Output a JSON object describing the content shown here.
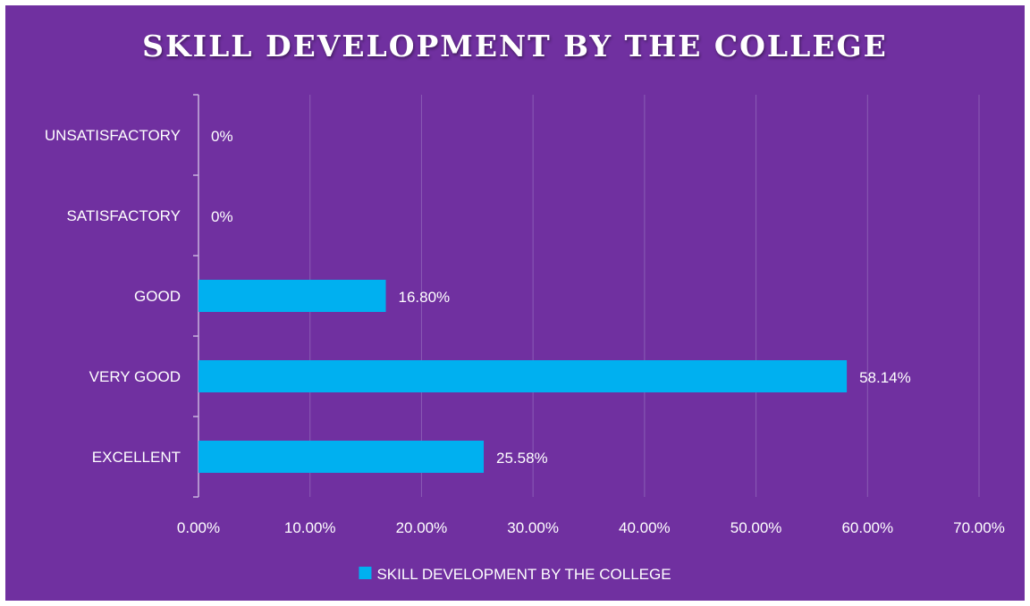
{
  "chart_data": {
    "type": "bar",
    "orientation": "horizontal",
    "title": "SKILL DEVELOPMENT BY THE COLLEGE",
    "categories": [
      "UNSATISFACTORY",
      "SATISFACTORY",
      "GOOD",
      "VERY GOOD",
      "EXCELLENT"
    ],
    "series": [
      {
        "name": "SKILL DEVELOPMENT BY THE COLLEGE",
        "values": [
          0,
          0,
          16.8,
          58.14,
          25.58
        ],
        "data_labels": [
          "0%",
          "0%",
          "16.80%",
          "58.14%",
          "25.58%"
        ]
      }
    ],
    "xlim": [
      0,
      70
    ],
    "x_ticks": [
      0,
      10,
      20,
      30,
      40,
      50,
      60,
      70
    ],
    "x_tick_labels": [
      "0.00%",
      "10.00%",
      "20.00%",
      "30.00%",
      "40.00%",
      "50.00%",
      "60.00%",
      "70.00%"
    ],
    "grid": "vertical",
    "legend_position": "bottom",
    "colors": {
      "background": "#7030a0",
      "bar": "#00b0f0",
      "text": "#ffffff",
      "grid": "#8a5cb5"
    }
  }
}
